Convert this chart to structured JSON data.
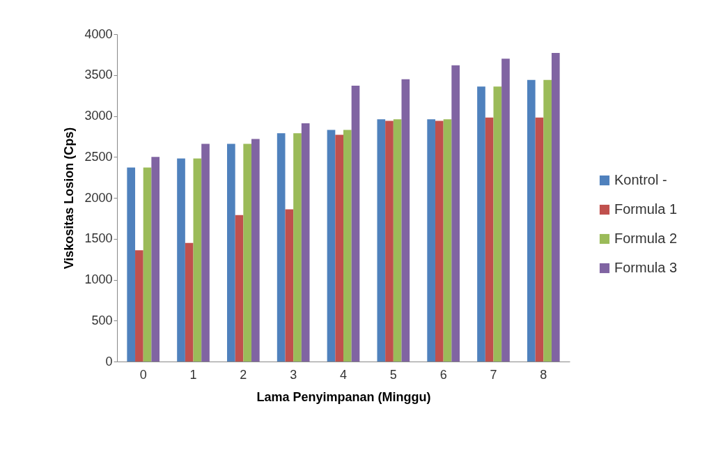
{
  "chart_data": {
    "type": "bar",
    "xlabel": "Lama Penyimpanan (Minggu)",
    "ylabel": "Viskositas Losion (Cps)",
    "categories": [
      "0",
      "1",
      "2",
      "3",
      "4",
      "5",
      "6",
      "7",
      "8"
    ],
    "series": [
      {
        "name": "Kontrol -",
        "color": "#4f81bd",
        "values": [
          2370,
          2480,
          2660,
          2790,
          2830,
          2960,
          2960,
          3360,
          3440
        ]
      },
      {
        "name": "Formula 1",
        "color": "#c0504d",
        "values": [
          1360,
          1450,
          1790,
          1860,
          2770,
          2940,
          2940,
          2980,
          2980
        ]
      },
      {
        "name": "Formula 2",
        "color": "#9bbb59",
        "values": [
          2370,
          2480,
          2660,
          2790,
          2830,
          2960,
          2960,
          3360,
          3440
        ]
      },
      {
        "name": "Formula 3",
        "color": "#8064a2",
        "values": [
          2500,
          2660,
          2720,
          2910,
          3370,
          3450,
          3620,
          3700,
          3770
        ]
      }
    ],
    "ylim": [
      0,
      4000
    ],
    "yticks": [
      0,
      500,
      1000,
      1500,
      2000,
      2500,
      3000,
      3500,
      4000
    ],
    "grid": false,
    "legend": "right"
  }
}
